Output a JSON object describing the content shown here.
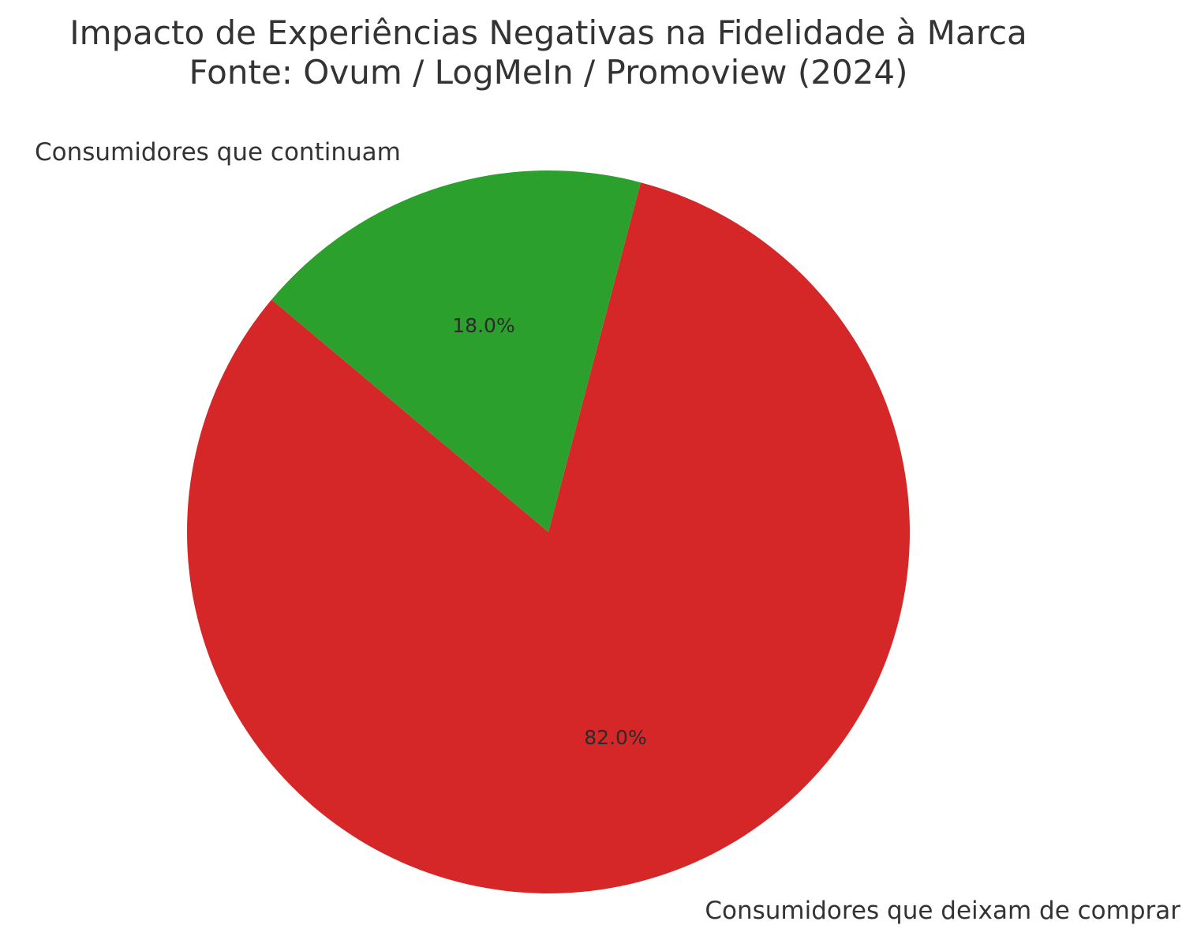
{
  "chart_data": {
    "type": "pie",
    "title": "Impacto de Experiências Negativas na Fidelidade à Marca",
    "subtitle": "Fonte: Ovum / LogMeIn / Promoview (2024)",
    "categories": [
      "Consumidores que deixam de comprar",
      "Consumidores que continuam"
    ],
    "values": [
      82.0,
      18.0
    ],
    "value_labels": [
      "82.0%",
      "18.0%"
    ],
    "colors": [
      "#d62728",
      "#2ca02c"
    ],
    "start_angle_deg": 140,
    "direction": "counterclockwise",
    "legend": "none"
  }
}
